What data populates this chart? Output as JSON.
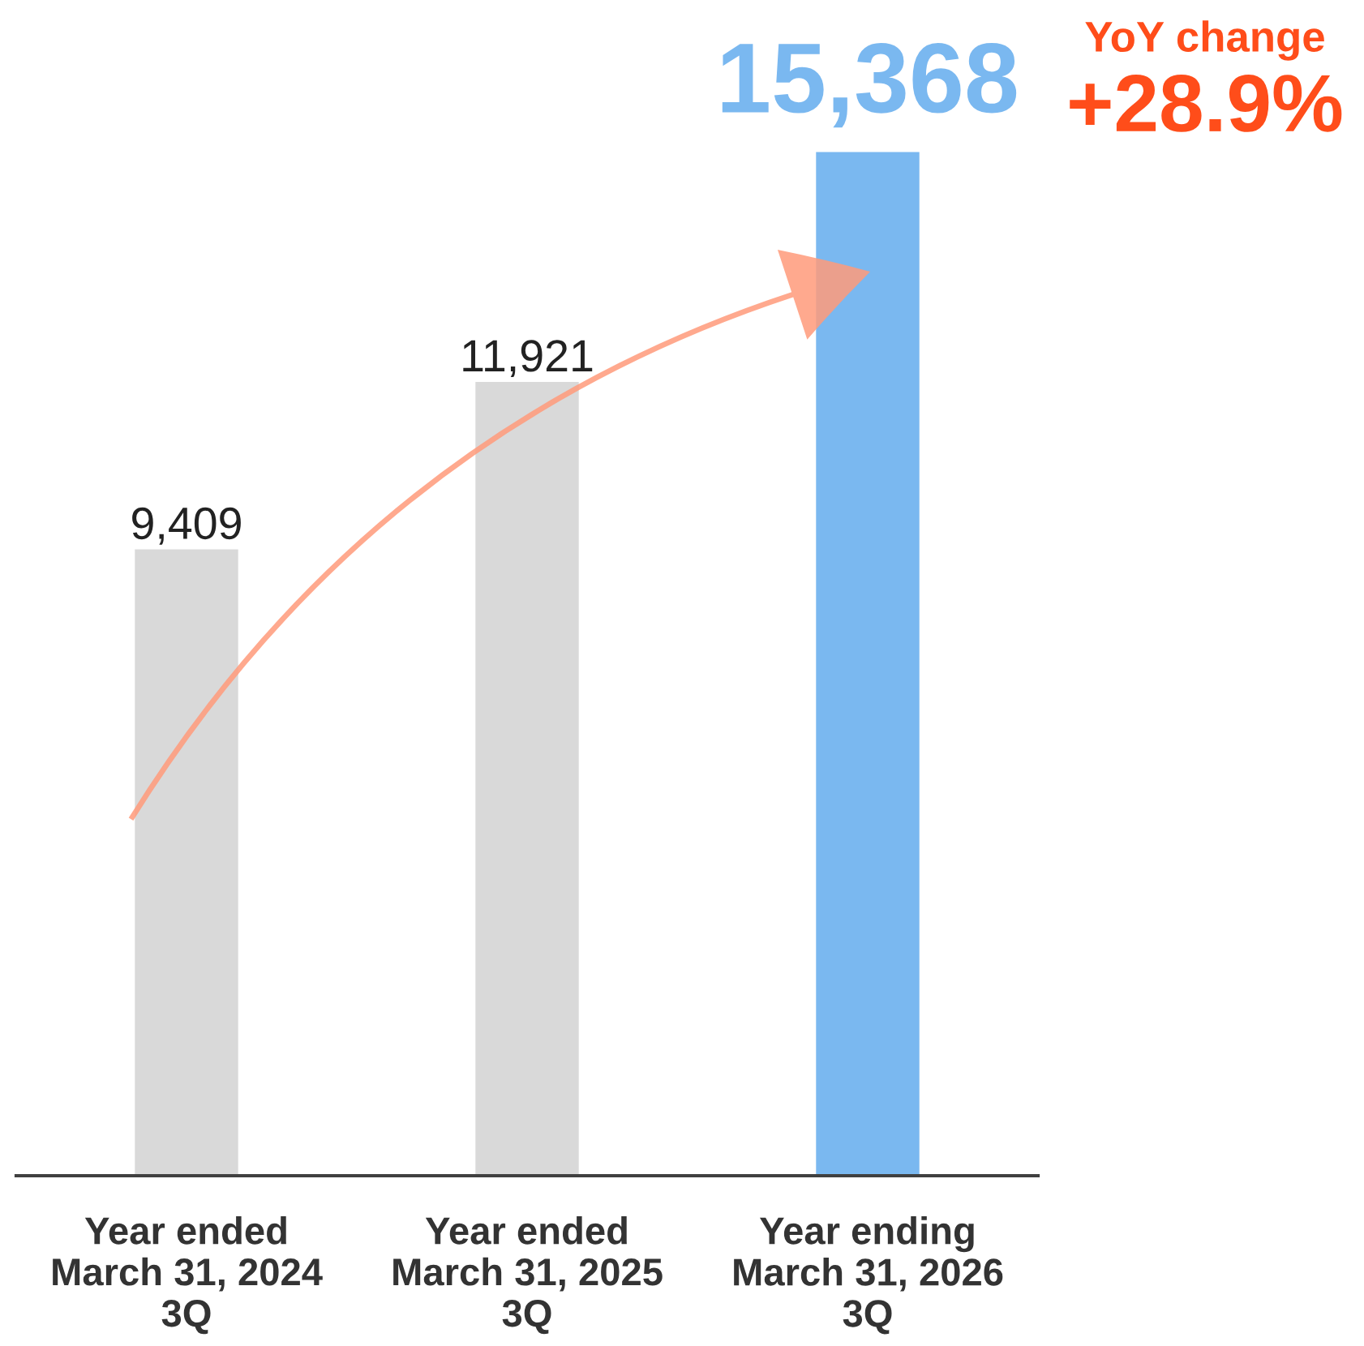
{
  "chart_data": {
    "type": "bar",
    "categories": [
      "Year ended\nMarch 31, 2024\n3Q",
      "Year ended\nMarch 31, 2025\n3Q",
      "Year ending\nMarch 31, 2026\n3Q"
    ],
    "values": [
      9409,
      11921,
      15368
    ],
    "colors": [
      "#d9d9d9",
      "#d9d9d9",
      "#7ab8f0"
    ],
    "value_labels": [
      "9,409",
      "11,921",
      "15,368"
    ],
    "annotations": [
      "YoY change",
      "+28.9%"
    ]
  }
}
